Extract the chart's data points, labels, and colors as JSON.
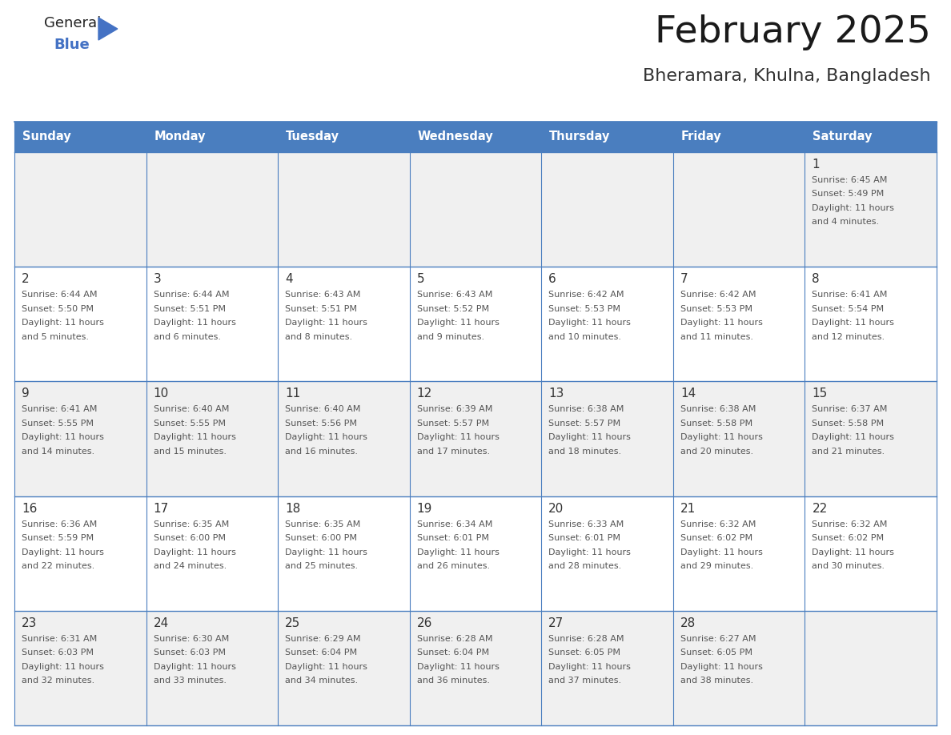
{
  "title": "February 2025",
  "subtitle": "Bheramara, Khulna, Bangladesh",
  "days_of_week": [
    "Sunday",
    "Monday",
    "Tuesday",
    "Wednesday",
    "Thursday",
    "Friday",
    "Saturday"
  ],
  "header_bg": "#4a7ebf",
  "header_text": "#FFFFFF",
  "cell_bg_white": "#FFFFFF",
  "cell_bg_gray": "#F0F0F0",
  "cell_border": "#4a7ebf",
  "day_number_color": "#333333",
  "info_text_color": "#555555",
  "title_color": "#1a1a1a",
  "subtitle_color": "#333333",
  "calendar_data": [
    [
      null,
      null,
      null,
      null,
      null,
      null,
      {
        "day": 1,
        "sunrise": "6:45 AM",
        "sunset": "5:49 PM",
        "daylight": "11 hours\nand 4 minutes."
      }
    ],
    [
      {
        "day": 2,
        "sunrise": "6:44 AM",
        "sunset": "5:50 PM",
        "daylight": "11 hours\nand 5 minutes."
      },
      {
        "day": 3,
        "sunrise": "6:44 AM",
        "sunset": "5:51 PM",
        "daylight": "11 hours\nand 6 minutes."
      },
      {
        "day": 4,
        "sunrise": "6:43 AM",
        "sunset": "5:51 PM",
        "daylight": "11 hours\nand 8 minutes."
      },
      {
        "day": 5,
        "sunrise": "6:43 AM",
        "sunset": "5:52 PM",
        "daylight": "11 hours\nand 9 minutes."
      },
      {
        "day": 6,
        "sunrise": "6:42 AM",
        "sunset": "5:53 PM",
        "daylight": "11 hours\nand 10 minutes."
      },
      {
        "day": 7,
        "sunrise": "6:42 AM",
        "sunset": "5:53 PM",
        "daylight": "11 hours\nand 11 minutes."
      },
      {
        "day": 8,
        "sunrise": "6:41 AM",
        "sunset": "5:54 PM",
        "daylight": "11 hours\nand 12 minutes."
      }
    ],
    [
      {
        "day": 9,
        "sunrise": "6:41 AM",
        "sunset": "5:55 PM",
        "daylight": "11 hours\nand 14 minutes."
      },
      {
        "day": 10,
        "sunrise": "6:40 AM",
        "sunset": "5:55 PM",
        "daylight": "11 hours\nand 15 minutes."
      },
      {
        "day": 11,
        "sunrise": "6:40 AM",
        "sunset": "5:56 PM",
        "daylight": "11 hours\nand 16 minutes."
      },
      {
        "day": 12,
        "sunrise": "6:39 AM",
        "sunset": "5:57 PM",
        "daylight": "11 hours\nand 17 minutes."
      },
      {
        "day": 13,
        "sunrise": "6:38 AM",
        "sunset": "5:57 PM",
        "daylight": "11 hours\nand 18 minutes."
      },
      {
        "day": 14,
        "sunrise": "6:38 AM",
        "sunset": "5:58 PM",
        "daylight": "11 hours\nand 20 minutes."
      },
      {
        "day": 15,
        "sunrise": "6:37 AM",
        "sunset": "5:58 PM",
        "daylight": "11 hours\nand 21 minutes."
      }
    ],
    [
      {
        "day": 16,
        "sunrise": "6:36 AM",
        "sunset": "5:59 PM",
        "daylight": "11 hours\nand 22 minutes."
      },
      {
        "day": 17,
        "sunrise": "6:35 AM",
        "sunset": "6:00 PM",
        "daylight": "11 hours\nand 24 minutes."
      },
      {
        "day": 18,
        "sunrise": "6:35 AM",
        "sunset": "6:00 PM",
        "daylight": "11 hours\nand 25 minutes."
      },
      {
        "day": 19,
        "sunrise": "6:34 AM",
        "sunset": "6:01 PM",
        "daylight": "11 hours\nand 26 minutes."
      },
      {
        "day": 20,
        "sunrise": "6:33 AM",
        "sunset": "6:01 PM",
        "daylight": "11 hours\nand 28 minutes."
      },
      {
        "day": 21,
        "sunrise": "6:32 AM",
        "sunset": "6:02 PM",
        "daylight": "11 hours\nand 29 minutes."
      },
      {
        "day": 22,
        "sunrise": "6:32 AM",
        "sunset": "6:02 PM",
        "daylight": "11 hours\nand 30 minutes."
      }
    ],
    [
      {
        "day": 23,
        "sunrise": "6:31 AM",
        "sunset": "6:03 PM",
        "daylight": "11 hours\nand 32 minutes."
      },
      {
        "day": 24,
        "sunrise": "6:30 AM",
        "sunset": "6:03 PM",
        "daylight": "11 hours\nand 33 minutes."
      },
      {
        "day": 25,
        "sunrise": "6:29 AM",
        "sunset": "6:04 PM",
        "daylight": "11 hours\nand 34 minutes."
      },
      {
        "day": 26,
        "sunrise": "6:28 AM",
        "sunset": "6:04 PM",
        "daylight": "11 hours\nand 36 minutes."
      },
      {
        "day": 27,
        "sunrise": "6:28 AM",
        "sunset": "6:05 PM",
        "daylight": "11 hours\nand 37 minutes."
      },
      {
        "day": 28,
        "sunrise": "6:27 AM",
        "sunset": "6:05 PM",
        "daylight": "11 hours\nand 38 minutes."
      },
      null
    ]
  ]
}
